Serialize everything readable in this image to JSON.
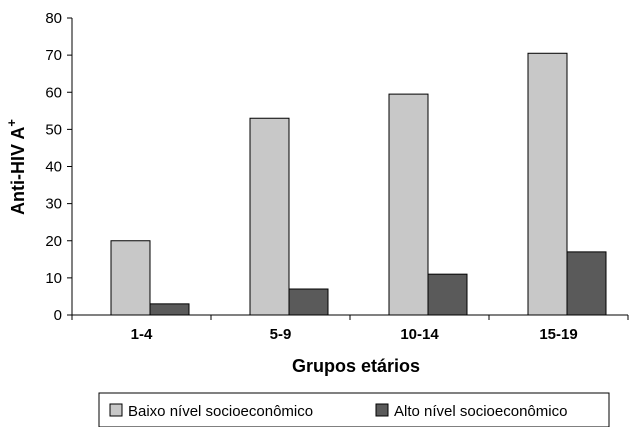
{
  "chart_data": {
    "type": "bar",
    "categories": [
      "1-4",
      "5-9",
      "10-14",
      "15-19"
    ],
    "series": [
      {
        "name": "Baixo nível socioeconômico",
        "values": [
          20,
          53,
          59.5,
          70.5
        ],
        "color": "#c8c8c8"
      },
      {
        "name": "Alto nível socioeconômico",
        "values": [
          3,
          7,
          11,
          17
        ],
        "color": "#5a5a5a"
      }
    ],
    "title": "",
    "xlabel": "Grupos etários",
    "ylabel": "Anti-HIV A",
    "ylabel_superscript": "+",
    "ylim": [
      0,
      80
    ],
    "yticks": [
      0,
      10,
      20,
      30,
      40,
      50,
      60,
      70,
      80
    ],
    "grid": false,
    "legend_position": "bottom"
  }
}
